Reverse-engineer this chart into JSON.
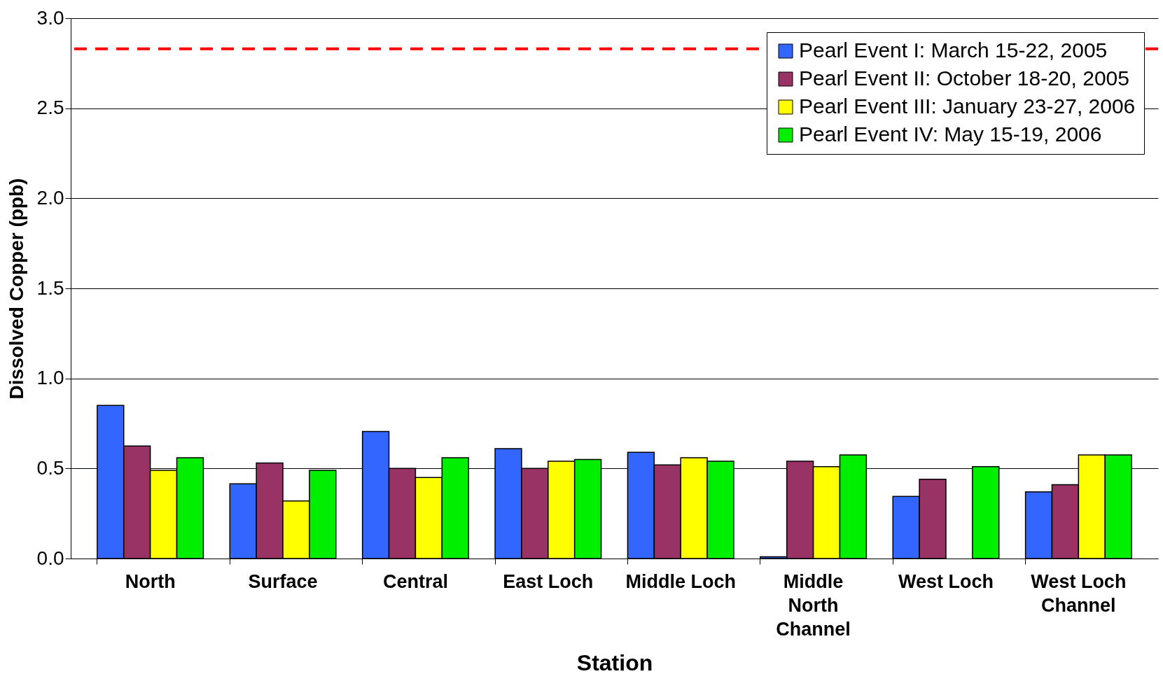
{
  "chart_data": {
    "type": "bar",
    "xlabel": "Station",
    "ylabel": "Dissolved Copper (ppb)",
    "categories": [
      "North",
      "Surface",
      "Central",
      "East Loch",
      "Middle Loch",
      "Middle North Channel",
      "West Loch",
      "West Loch Channel"
    ],
    "series": [
      {
        "name": "Pearl Event I: March 15-22, 2005",
        "color": "#3366ff",
        "values": [
          0.85,
          0.415,
          0.705,
          0.61,
          0.59,
          0.01,
          0.345,
          0.37
        ]
      },
      {
        "name": "Pearl Event II: October 18-20, 2005",
        "color": "#993366",
        "values": [
          0.625,
          0.53,
          0.5,
          0.5,
          0.52,
          0.54,
          0.44,
          0.41
        ]
      },
      {
        "name": "Pearl Event III: January 23-27, 2006",
        "color": "#ffff00",
        "values": [
          0.49,
          0.32,
          0.45,
          0.54,
          0.56,
          0.51,
          null,
          0.575
        ]
      },
      {
        "name": "Pearl Event IV: May 15-19, 2006",
        "color": "#00ee00",
        "values": [
          0.56,
          0.49,
          0.56,
          0.55,
          0.54,
          0.575,
          0.51,
          0.575
        ]
      }
    ],
    "ylim": [
      0,
      3.0
    ],
    "yticks": [
      {
        "value": 0,
        "label": "0.0"
      },
      {
        "value": 0.5,
        "label": "0.5"
      },
      {
        "value": 1.0,
        "label": "1.0"
      },
      {
        "value": 1.5,
        "label": "1.5"
      },
      {
        "value": 2.0,
        "label": "2.0"
      },
      {
        "value": 2.5,
        "label": "2.5"
      },
      {
        "value": 3.0,
        "label": "3.0"
      }
    ],
    "ref_lines": [
      {
        "axis": "y",
        "value": 2.83,
        "color": "#ff0000",
        "line_style": "dashed"
      }
    ],
    "grid": "y",
    "legend": "top right"
  }
}
